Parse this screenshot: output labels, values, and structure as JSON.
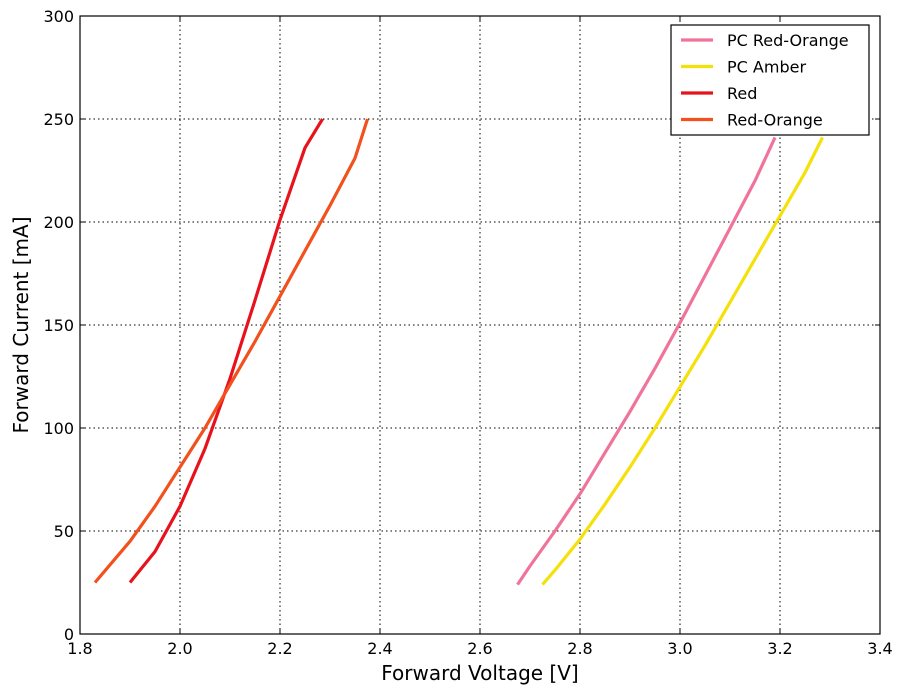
{
  "chart_data": {
    "type": "line",
    "xlabel": "Forward Voltage [V]",
    "ylabel": "Forward Current [mA]",
    "xlim": [
      1.8,
      3.4
    ],
    "ylim": [
      0,
      300
    ],
    "x_ticks": [
      1.8,
      2.0,
      2.2,
      2.4,
      2.6,
      2.8,
      3.0,
      3.2,
      3.4
    ],
    "x_tick_labels": [
      "1.8",
      "2.0",
      "2.2",
      "2.4",
      "2.6",
      "2.8",
      "3.0",
      "3.2",
      "3.4"
    ],
    "y_ticks": [
      0,
      50,
      100,
      150,
      200,
      250,
      300
    ],
    "y_tick_labels": [
      "0",
      "50",
      "100",
      "150",
      "200",
      "250",
      "300"
    ],
    "grid": true,
    "legend_position": "top-right",
    "series": [
      {
        "name": "PC Red-Orange",
        "color": "#f0739a",
        "points": [
          [
            2.675,
            24
          ],
          [
            2.7,
            33
          ],
          [
            2.75,
            50
          ],
          [
            2.8,
            68
          ],
          [
            2.85,
            88
          ],
          [
            2.9,
            108
          ],
          [
            2.95,
            129
          ],
          [
            3.0,
            151
          ],
          [
            3.05,
            174
          ],
          [
            3.1,
            197
          ],
          [
            3.15,
            220
          ],
          [
            3.19,
            241
          ]
        ]
      },
      {
        "name": "PC Amber",
        "color": "#f5e10a",
        "points": [
          [
            2.725,
            24
          ],
          [
            2.75,
            31
          ],
          [
            2.8,
            46
          ],
          [
            2.85,
            63
          ],
          [
            2.9,
            81
          ],
          [
            2.95,
            100
          ],
          [
            3.0,
            120
          ],
          [
            3.05,
            140
          ],
          [
            3.1,
            161
          ],
          [
            3.15,
            182
          ],
          [
            3.2,
            203
          ],
          [
            3.25,
            224
          ],
          [
            3.285,
            241
          ]
        ]
      },
      {
        "name": "Red",
        "color": "#e8121c",
        "points": [
          [
            1.9,
            25
          ],
          [
            1.95,
            40
          ],
          [
            2.0,
            62
          ],
          [
            2.05,
            90
          ],
          [
            2.1,
            124
          ],
          [
            2.15,
            162
          ],
          [
            2.2,
            201
          ],
          [
            2.25,
            236
          ],
          [
            2.285,
            250
          ]
        ]
      },
      {
        "name": "Red-Orange",
        "color": "#f2501c",
        "points": [
          [
            1.83,
            25
          ],
          [
            1.9,
            45
          ],
          [
            1.95,
            62
          ],
          [
            2.0,
            81
          ],
          [
            2.05,
            100
          ],
          [
            2.1,
            121
          ],
          [
            2.15,
            142
          ],
          [
            2.2,
            164
          ],
          [
            2.25,
            186
          ],
          [
            2.3,
            208
          ],
          [
            2.35,
            231
          ],
          [
            2.375,
            250
          ]
        ]
      }
    ]
  }
}
